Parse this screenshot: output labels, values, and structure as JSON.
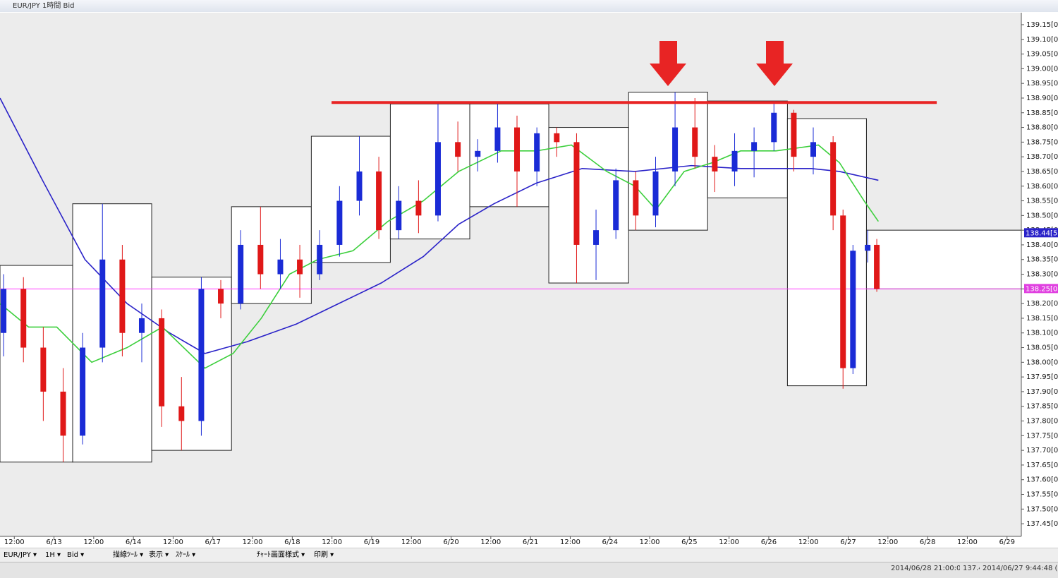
{
  "window": {
    "title": "EUR/JPY 1時間 Bid",
    "toolbar": [
      "EUR/JPY ▾",
      "1H ▾",
      "Bid ▾",
      "描線ﾂｰﾙ ▾",
      "表示 ▾",
      "ｽｹｰﾙ ▾",
      "ﾁｬｰﾄ画面様式 ▾",
      "印刷 ▾"
    ],
    "status": [
      "2014/06/28 21:00:00",
      "137.4",
      "2014/06/27 9:44:48 (Lo"
    ]
  },
  "chart_data": {
    "type": "candlestick",
    "xlim": [
      -0.36,
      25.36
    ],
    "ylim": [
      137.407,
      139.186
    ],
    "xticks": [
      {
        "value": 0,
        "label": "12:00"
      },
      {
        "value": 1,
        "label": "6/13"
      },
      {
        "value": 2,
        "label": "12:00"
      },
      {
        "value": 3,
        "label": "6/14"
      },
      {
        "value": 4,
        "label": "12:00"
      },
      {
        "value": 5,
        "label": "6/17"
      },
      {
        "value": 6,
        "label": "12:00"
      },
      {
        "value": 7,
        "label": "6/18"
      },
      {
        "value": 8,
        "label": "12:00"
      },
      {
        "value": 9,
        "label": "6/19"
      },
      {
        "value": 10,
        "label": "12:00"
      },
      {
        "value": 11,
        "label": "6/20"
      },
      {
        "value": 12,
        "label": "12:00"
      },
      {
        "value": 13,
        "label": "6/21"
      },
      {
        "value": 14,
        "label": "12:00"
      },
      {
        "value": 15,
        "label": "6/24"
      },
      {
        "value": 16,
        "label": "12:00"
      },
      {
        "value": 17,
        "label": "6/25"
      },
      {
        "value": 18,
        "label": "12:00"
      },
      {
        "value": 19,
        "label": "6/26"
      },
      {
        "value": 20,
        "label": "12:00"
      },
      {
        "value": 21,
        "label": "6/27"
      },
      {
        "value": 22,
        "label": "12:00"
      },
      {
        "value": 23,
        "label": "6/28"
      },
      {
        "value": 24,
        "label": "12:00"
      },
      {
        "value": 25,
        "label": "6/29"
      }
    ],
    "yticks": [
      {
        "value": 139.15,
        "label": "139.15[0]"
      },
      {
        "value": 139.1,
        "label": "139.10[0]"
      },
      {
        "value": 139.05,
        "label": "139.05[0]"
      },
      {
        "value": 139.0,
        "label": "139.00[0]"
      },
      {
        "value": 138.95,
        "label": "138.95[0]"
      },
      {
        "value": 138.9,
        "label": "138.90[0]"
      },
      {
        "value": 138.85,
        "label": "138.85[0]"
      },
      {
        "value": 138.8,
        "label": "138.80[0]"
      },
      {
        "value": 138.75,
        "label": "138.75[0]"
      },
      {
        "value": 138.7,
        "label": "138.70[0]"
      },
      {
        "value": 138.65,
        "label": "138.65[0]"
      },
      {
        "value": 138.6,
        "label": "138.60[0]"
      },
      {
        "value": 138.55,
        "label": "138.55[0]"
      },
      {
        "value": 138.5,
        "label": "138.50[0]"
      },
      {
        "value": 138.45,
        "label": "138.45[0]"
      },
      {
        "value": 138.4,
        "label": "138.40[0]"
      },
      {
        "value": 138.35,
        "label": "138.35[0]"
      },
      {
        "value": 138.3,
        "label": "138.30[0]"
      },
      {
        "value": 138.25,
        "label": "138.25[0]"
      },
      {
        "value": 138.2,
        "label": "138.20[0]"
      },
      {
        "value": 138.15,
        "label": "138.15[0]"
      },
      {
        "value": 138.1,
        "label": "138.10[0]"
      },
      {
        "value": 138.05,
        "label": "138.05[0]"
      },
      {
        "value": 138.0,
        "label": "138.00[0]"
      },
      {
        "value": 137.95,
        "label": "137.95[0]"
      },
      {
        "value": 137.9,
        "label": "137.90[0]"
      },
      {
        "value": 137.85,
        "label": "137.85[0]"
      },
      {
        "value": 137.8,
        "label": "137.80[0]"
      },
      {
        "value": 137.75,
        "label": "137.75[0]"
      },
      {
        "value": 137.7,
        "label": "137.70[0]"
      },
      {
        "value": 137.65,
        "label": "137.65[0]"
      },
      {
        "value": 137.6,
        "label": "137.60[0]"
      },
      {
        "value": 137.55,
        "label": "137.55[0]"
      },
      {
        "value": 137.5,
        "label": "137.50[0]"
      },
      {
        "value": 137.45,
        "label": "137.45[0]"
      }
    ],
    "up_color": "#1a2bd6",
    "down_color": "#e01818",
    "candles": {
      "x": [
        -0.27,
        0.23,
        0.73,
        1.23,
        1.72,
        2.22,
        2.72,
        3.21,
        3.71,
        4.21,
        4.71,
        5.2,
        5.7,
        6.2,
        6.7,
        7.19,
        7.69,
        8.19,
        8.69,
        9.18,
        9.68,
        10.18,
        10.67,
        11.17,
        11.67,
        12.17,
        12.66,
        13.16,
        13.66,
        14.16,
        14.65,
        15.15,
        15.65,
        16.15,
        16.64,
        17.14,
        17.64,
        18.14,
        18.63,
        19.13,
        19.63,
        20.12,
        20.62,
        20.87,
        21.12,
        21.49,
        21.72
      ],
      "open": [
        138.1,
        138.25,
        138.05,
        137.9,
        137.75,
        138.05,
        138.35,
        138.1,
        138.15,
        137.85,
        137.8,
        138.25,
        138.2,
        138.4,
        138.3,
        138.35,
        138.3,
        138.4,
        138.55,
        138.65,
        138.45,
        138.55,
        138.5,
        138.75,
        138.7,
        138.72,
        138.8,
        138.65,
        138.78,
        138.75,
        138.4,
        138.45,
        138.62,
        138.5,
        138.65,
        138.8,
        138.7,
        138.65,
        138.72,
        138.75,
        138.85,
        138.7,
        138.75,
        138.5,
        137.98,
        138.38,
        138.4
      ],
      "high": [
        138.3,
        138.29,
        138.12,
        137.98,
        138.1,
        138.54,
        138.4,
        138.2,
        138.18,
        137.95,
        138.29,
        138.28,
        138.45,
        138.53,
        138.42,
        138.4,
        138.45,
        138.6,
        138.77,
        138.7,
        138.6,
        138.62,
        138.88,
        138.82,
        138.76,
        138.88,
        138.84,
        138.8,
        138.8,
        138.78,
        138.52,
        138.66,
        138.65,
        138.7,
        138.92,
        138.9,
        138.74,
        138.78,
        138.8,
        138.89,
        138.86,
        138.8,
        138.77,
        138.52,
        138.4,
        138.45,
        138.42
      ],
      "low": [
        138.02,
        138.0,
        137.8,
        137.66,
        137.72,
        138.0,
        138.02,
        138.0,
        137.78,
        137.7,
        137.75,
        138.15,
        138.18,
        138.25,
        138.25,
        138.22,
        138.28,
        138.36,
        138.5,
        138.42,
        138.42,
        138.44,
        138.48,
        138.65,
        138.65,
        138.68,
        138.53,
        138.6,
        138.7,
        138.27,
        138.28,
        138.42,
        138.45,
        138.46,
        138.6,
        138.66,
        138.58,
        138.6,
        138.63,
        138.72,
        138.65,
        138.64,
        138.45,
        137.91,
        137.96,
        138.34,
        138.24
      ],
      "close": [
        138.25,
        138.05,
        137.9,
        137.75,
        138.05,
        138.35,
        138.1,
        138.15,
        137.85,
        137.8,
        138.25,
        138.2,
        138.4,
        138.3,
        138.35,
        138.3,
        138.4,
        138.55,
        138.65,
        138.45,
        138.55,
        138.5,
        138.75,
        138.7,
        138.72,
        138.8,
        138.65,
        138.78,
        138.75,
        138.4,
        138.45,
        138.62,
        138.5,
        138.65,
        138.8,
        138.7,
        138.65,
        138.72,
        138.75,
        138.85,
        138.7,
        138.75,
        138.5,
        137.98,
        138.38,
        138.4,
        138.25
      ]
    },
    "lines": [
      {
        "color": "#2a22c8",
        "x": [
          -0.36,
          0.71,
          1.78,
          2.84,
          3.91,
          4.8,
          5.86,
          7.1,
          8.17,
          9.24,
          10.3,
          11.19,
          12.08,
          13.14,
          14.3,
          15.63,
          17.05,
          18.29,
          20.07,
          20.78,
          21.76
        ],
        "values": [
          138.9,
          138.62,
          138.35,
          138.2,
          138.1,
          138.03,
          138.07,
          138.13,
          138.2,
          138.27,
          138.36,
          138.47,
          138.54,
          138.61,
          138.66,
          138.65,
          138.67,
          138.66,
          138.66,
          138.65,
          138.62
        ]
      },
      {
        "color": "#3ccf3c",
        "x": [
          -0.36,
          0.36,
          1.07,
          1.95,
          2.84,
          3.73,
          4.8,
          5.51,
          6.22,
          6.93,
          7.64,
          8.53,
          9.41,
          10.3,
          11.19,
          12.26,
          13.14,
          14.03,
          14.92,
          15.63,
          16.16,
          16.87,
          17.58,
          18.29,
          19.18,
          20.25,
          20.78,
          21.4,
          21.76
        ],
        "values": [
          138.2,
          138.12,
          138.12,
          138.0,
          138.05,
          138.12,
          137.98,
          138.03,
          138.15,
          138.3,
          138.35,
          138.38,
          138.48,
          138.55,
          138.65,
          138.72,
          138.72,
          138.74,
          138.65,
          138.6,
          138.52,
          138.65,
          138.68,
          138.72,
          138.72,
          138.74,
          138.68,
          138.55,
          138.48
        ]
      }
    ],
    "ranges": {
      "x_start": [
        -0.36,
        1.47,
        3.46,
        5.47,
        7.48,
        9.47,
        11.47,
        13.46,
        15.47,
        17.46,
        19.47,
        21.46
      ],
      "x_end": [
        1.47,
        3.46,
        5.47,
        7.48,
        9.47,
        11.47,
        13.46,
        15.47,
        17.46,
        19.47,
        21.46,
        25.36
      ],
      "high": [
        138.33,
        138.54,
        138.29,
        138.53,
        138.77,
        138.88,
        138.88,
        138.8,
        138.92,
        138.89,
        138.83,
        138.45
      ],
      "low": [
        137.66,
        137.66,
        137.7,
        138.2,
        138.34,
        138.42,
        138.53,
        138.27,
        138.45,
        138.56,
        137.92,
        138.25
      ]
    },
    "resistance": {
      "x": [
        7.99,
        23.23
      ],
      "value": 138.885,
      "color": "#e82424"
    },
    "bid_line": {
      "value": 138.25,
      "color": "#ff3dff"
    },
    "price_labels": [
      {
        "value": 138.44,
        "label": "138.44[5]",
        "color": "#2a22c8"
      },
      {
        "value": 138.25,
        "label": "138.25[0]",
        "color": "#e040e0"
      }
    ]
  }
}
